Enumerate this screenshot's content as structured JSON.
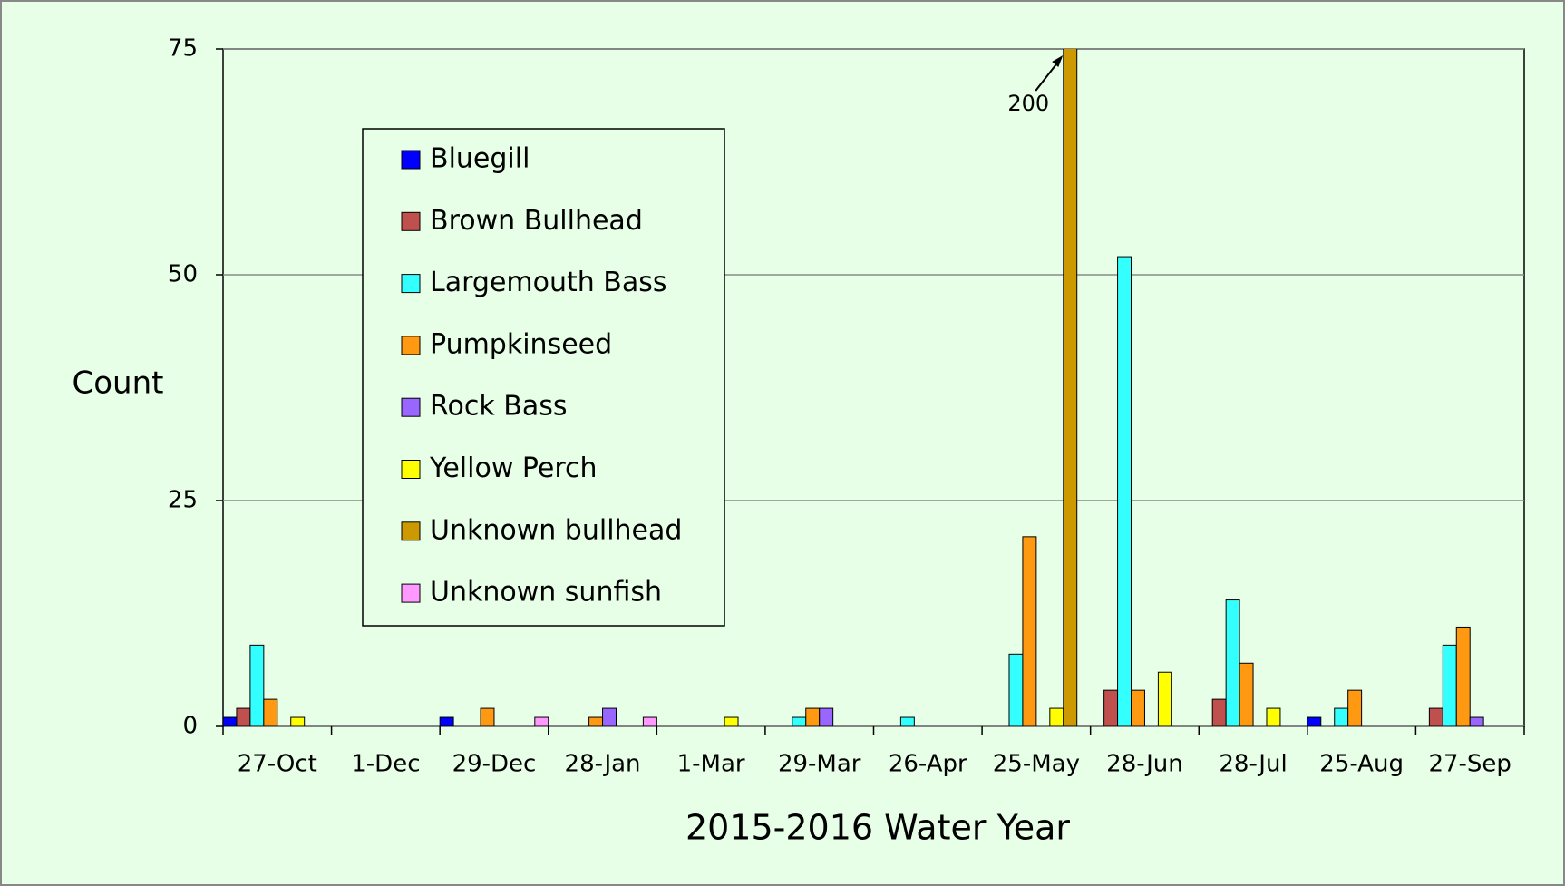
{
  "chart_data": {
    "type": "bar",
    "xlabel": "2015-2016 Water Year",
    "ylabel": "Count",
    "categories": [
      "27-Oct",
      "1-Dec",
      "29-Dec",
      "28-Jan",
      "1-Mar",
      "29-Mar",
      "26-Apr",
      "25-May",
      "28-Jun",
      "28-Jul",
      "25-Aug",
      "27-Sep"
    ],
    "series": [
      {
        "name": "Bluegill",
        "color": "#0000ff",
        "values": [
          1,
          0,
          1,
          0,
          0,
          0,
          0,
          0,
          0,
          0,
          1,
          0
        ]
      },
      {
        "name": "Brown Bullhead",
        "color": "#c0504d",
        "values": [
          2,
          0,
          0,
          0,
          0,
          0,
          0,
          0,
          4,
          3,
          0,
          2
        ]
      },
      {
        "name": "Largemouth Bass",
        "color": "#33ffff",
        "values": [
          9,
          0,
          0,
          0,
          0,
          1,
          1,
          8,
          52,
          14,
          2,
          9
        ]
      },
      {
        "name": "Pumpkinseed",
        "color": "#ff9912",
        "values": [
          3,
          0,
          2,
          1,
          0,
          2,
          0,
          21,
          4,
          7,
          4,
          11
        ]
      },
      {
        "name": "Rock Bass",
        "color": "#9966ff",
        "values": [
          0,
          0,
          0,
          2,
          0,
          2,
          0,
          0,
          0,
          0,
          0,
          1
        ]
      },
      {
        "name": "Yellow Perch",
        "color": "#ffff00",
        "values": [
          1,
          0,
          0,
          0,
          1,
          0,
          0,
          2,
          6,
          2,
          0,
          0
        ]
      },
      {
        "name": "Unknown bullhead",
        "color": "#cc9900",
        "values": [
          0,
          0,
          0,
          0,
          0,
          0,
          0,
          200,
          0,
          0,
          0,
          0
        ],
        "value_labels": [
          null,
          null,
          null,
          null,
          null,
          null,
          null,
          "200",
          null,
          null,
          null,
          null
        ]
      },
      {
        "name": "Unknown sunfish",
        "color": "#ff99ff",
        "values": [
          0,
          0,
          1,
          1,
          0,
          0,
          0,
          0,
          0,
          0,
          0,
          0
        ]
      }
    ],
    "ylim": [
      0,
      75
    ],
    "yticks": [
      0,
      25,
      50,
      75
    ],
    "grid": true,
    "legend": "upper left"
  }
}
